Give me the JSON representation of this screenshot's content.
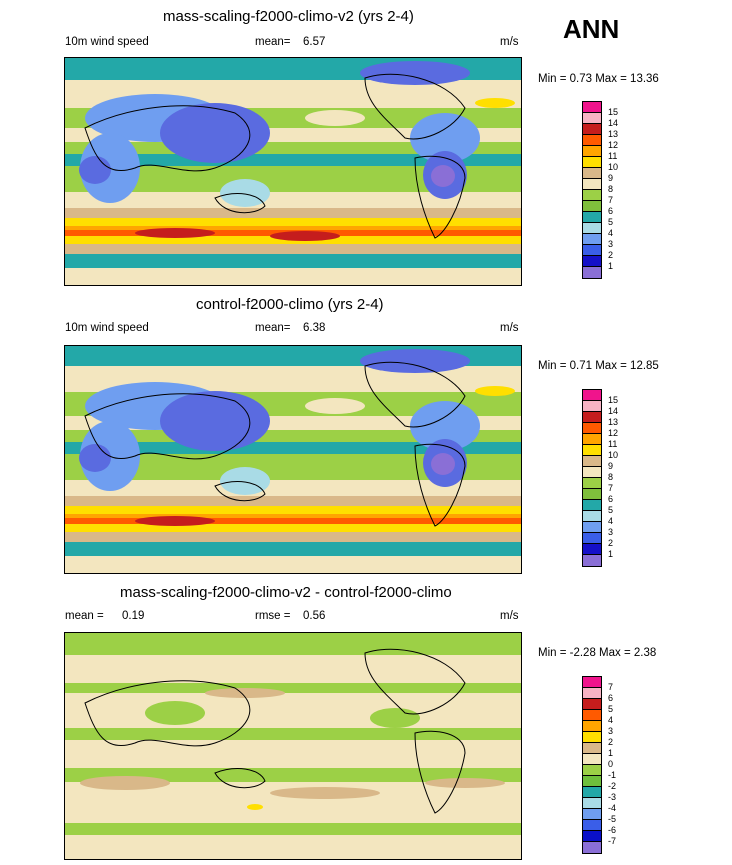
{
  "season": "ANN",
  "palette": [
    "#8a6fd6",
    "#5a6be0",
    "#1510c8",
    "#3a5ee8",
    "#6f9ef0",
    "#a9dbe6",
    "#23a8a8",
    "#9cd046",
    "#7fbf3c",
    "#f3e6bf",
    "#d9b889",
    "#ffdf00",
    "#ffa500",
    "#ff5a00",
    "#c51d1d",
    "#f7b3c4",
    "#f0148c"
  ],
  "diff_palette": [
    "#8a6fd6",
    "#0a10c8",
    "#3a5ee8",
    "#6f9ef0",
    "#a9dbe6",
    "#23a8a8",
    "#6fbf3c",
    "#9cd046",
    "#f3e6bf",
    "#d9b889",
    "#ffdf00",
    "#ffa500",
    "#ff5a00",
    "#c51d1d",
    "#f7b3c4",
    "#f0148c"
  ],
  "panels": [
    {
      "title": "mass-scaling-f2000-climo-v2 (yrs 2-4)",
      "left_label": "10m wind speed",
      "stat_label": "mean=",
      "stat_value": "6.57",
      "stat2_label": "",
      "stat2_value": "",
      "units": "m/s",
      "range_text": "Min =   0.73 Max =  13.36",
      "levels": [
        "15",
        "14",
        "13",
        "12",
        "11",
        "10",
        "9",
        "8",
        "7",
        "6",
        "5",
        "4",
        "3",
        "2",
        "1"
      ],
      "kind": "wind"
    },
    {
      "title": "control-f2000-climo (yrs 2-4)",
      "left_label": "10m wind speed",
      "stat_label": "mean=",
      "stat_value": "6.38",
      "stat2_label": "",
      "stat2_value": "",
      "units": "m/s",
      "range_text": "Min =   0.71 Max =  12.85",
      "levels": [
        "15",
        "14",
        "13",
        "12",
        "11",
        "10",
        "9",
        "8",
        "7",
        "6",
        "5",
        "4",
        "3",
        "2",
        "1"
      ],
      "kind": "wind"
    },
    {
      "title": "mass-scaling-f2000-climo-v2 - control-f2000-climo",
      "left_label": "mean =",
      "stat_label": "",
      "stat_value": "0.19",
      "stat2_label": "rmse =",
      "stat2_value": "0.56",
      "units": "m/s",
      "range_text": "Min =  -2.28 Max =   2.38",
      "levels": [
        "7",
        "6",
        "5",
        "4",
        "3",
        "2",
        "1",
        "0",
        "-1",
        "-2",
        "-3",
        "-4",
        "-5",
        "-6",
        "-7"
      ],
      "kind": "diff"
    }
  ]
}
